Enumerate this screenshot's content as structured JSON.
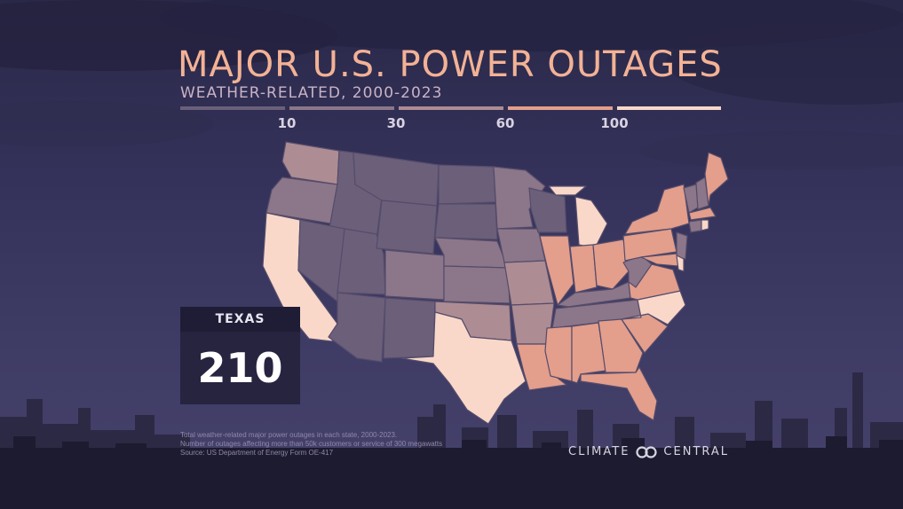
{
  "title": "MAJOR U.S. POWER OUTAGES",
  "subtitle": "WEATHER-RELATED, 2000-2023",
  "legend": {
    "ticks": [
      "10",
      "30",
      "60",
      "100"
    ],
    "colors": [
      "#6b5f7a",
      "#8c7689",
      "#ad8c93",
      "#e39e8c",
      "#f9d8c9"
    ]
  },
  "state_colors": {
    "low": "#6b5f7a",
    "mid_low": "#8c7689",
    "mid": "#ad8c93",
    "mid_high": "#e39e8c",
    "high": "#f9d8c9",
    "border": "#544b6a"
  },
  "callout": {
    "state": "TEXAS",
    "value": "210"
  },
  "footnote": [
    "Total weather-related major power outages in each state, 2000-2023.",
    "Number of outages affecting more than 50k customers or service of 300 megawatts",
    "Source: US Department of Energy Form OE-417"
  ],
  "brand": {
    "left": "CLIMATE",
    "right": "CENTRAL",
    "icon": "climate-central-logo-icon"
  }
}
